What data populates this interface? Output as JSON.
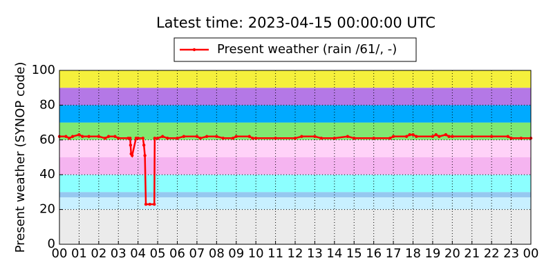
{
  "chart_data": {
    "type": "line",
    "title": "Latest time: 2023-04-15 00:00:00 UTC",
    "y_label": "Present weather (SYNOP code)",
    "xlim": [
      0,
      24
    ],
    "ylim": [
      0,
      100
    ],
    "xticks": [
      {
        "value": 0,
        "label": "00"
      },
      {
        "value": 1,
        "label": "01"
      },
      {
        "value": 2,
        "label": "02"
      },
      {
        "value": 3,
        "label": "03"
      },
      {
        "value": 4,
        "label": "04"
      },
      {
        "value": 5,
        "label": "05"
      },
      {
        "value": 6,
        "label": "06"
      },
      {
        "value": 7,
        "label": "07"
      },
      {
        "value": 8,
        "label": "08"
      },
      {
        "value": 9,
        "label": "09"
      },
      {
        "value": 10,
        "label": "10"
      },
      {
        "value": 11,
        "label": "11"
      },
      {
        "value": 12,
        "label": "12"
      },
      {
        "value": 13,
        "label": "13"
      },
      {
        "value": 14,
        "label": "14"
      },
      {
        "value": 15,
        "label": "15"
      },
      {
        "value": 16,
        "label": "16"
      },
      {
        "value": 17,
        "label": "17"
      },
      {
        "value": 18,
        "label": "18"
      },
      {
        "value": 19,
        "label": "19"
      },
      {
        "value": 20,
        "label": "20"
      },
      {
        "value": 21,
        "label": "21"
      },
      {
        "value": 22,
        "label": "22"
      },
      {
        "value": 23,
        "label": "23"
      },
      {
        "value": 24,
        "label": "00"
      }
    ],
    "yticks": [
      0,
      20,
      40,
      60,
      80,
      100
    ],
    "grid": true,
    "legend": "top",
    "bands": [
      {
        "from": 0,
        "to": 20,
        "color": "#ebebeb"
      },
      {
        "from": 20,
        "to": 27,
        "color": "#c8f0ff"
      },
      {
        "from": 27,
        "to": 30,
        "color": "#96c8f0"
      },
      {
        "from": 30,
        "to": 40,
        "color": "#8cffff"
      },
      {
        "from": 40,
        "to": 50,
        "color": "#f5b4f0"
      },
      {
        "from": 50,
        "to": 60,
        "color": "#ffd2f8"
      },
      {
        "from": 60,
        "to": 70,
        "color": "#80e870"
      },
      {
        "from": 70,
        "to": 80,
        "color": "#00aaff"
      },
      {
        "from": 80,
        "to": 90,
        "color": "#b478e6"
      },
      {
        "from": 90,
        "to": 100,
        "color": "#f5f03c"
      }
    ],
    "series": [
      {
        "name": "Present weather (rain /61/, -)",
        "color": "#ff0000",
        "x": [
          0,
          0.33,
          0.5,
          0.67,
          1,
          1.17,
          1.5,
          2,
          2.33,
          2.5,
          2.83,
          3,
          3.5,
          3.6,
          3.62,
          3.65,
          3.7,
          3.9,
          4,
          4.25,
          4.3,
          4.35,
          4.4,
          4.6,
          4.83,
          4.85,
          5,
          5.25,
          5.5,
          6,
          6.33,
          7,
          7.17,
          7.5,
          8,
          8.33,
          8.83,
          9,
          9.67,
          9.83,
          10,
          11,
          12,
          12.33,
          13,
          13.33,
          14,
          14.67,
          15,
          16,
          16.83,
          17,
          17.67,
          17.83,
          18,
          18.17,
          19,
          19.17,
          19.33,
          19.67,
          19.83,
          20,
          21,
          22,
          22.83,
          23,
          23.5,
          24
        ],
        "values": [
          62,
          62,
          61,
          62,
          63,
          62,
          62,
          62,
          61,
          62,
          62,
          61,
          61,
          61,
          57,
          52,
          51,
          61,
          61,
          61,
          57,
          51,
          23,
          23,
          23,
          61,
          61,
          62,
          61,
          61,
          62,
          62,
          61,
          62,
          62,
          61,
          61,
          62,
          62,
          61,
          61,
          61,
          61,
          62,
          62,
          61,
          61,
          62,
          61,
          61,
          61,
          62,
          62,
          63,
          63,
          62,
          62,
          63,
          62,
          63,
          62,
          62,
          62,
          62,
          62,
          61,
          61,
          61
        ]
      }
    ]
  }
}
